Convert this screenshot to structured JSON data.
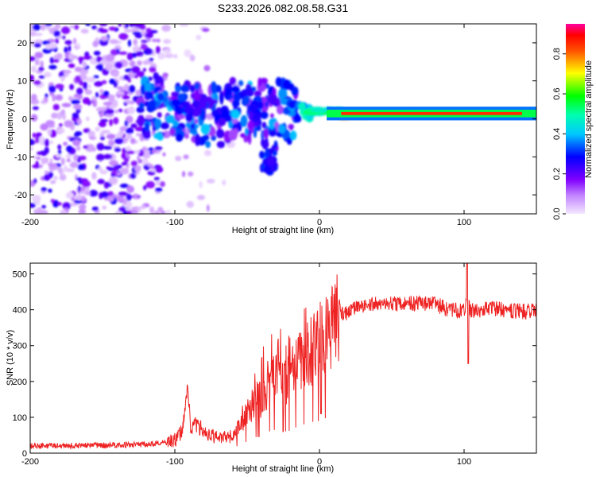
{
  "title": "S233.2026.082.08.58.G31",
  "chart_data": [
    {
      "type": "heatmap",
      "name": "spectrogram",
      "xlabel": "Height of straight line (km)",
      "ylabel": "Frequency (Hz)",
      "xlim": [
        -200,
        150
      ],
      "ylim": [
        -25,
        25
      ],
      "xticks": [
        -200,
        -100,
        0,
        100
      ],
      "xtick_labels": [
        "-200",
        "-100",
        "0",
        "100"
      ],
      "yticks": [
        -20,
        -10,
        0,
        10,
        20
      ],
      "ytick_labels": [
        "-20",
        "-10",
        "0",
        "10",
        "20"
      ],
      "colorbar": {
        "label": "Normalized spectral amplitude",
        "range": [
          0.0,
          0.95
        ],
        "ticks": [
          0.0,
          0.2,
          0.4,
          0.6,
          0.8
        ],
        "tick_labels": [
          "0.0",
          "0.2",
          "0.4",
          "0.6",
          "0.8"
        ]
      },
      "features": {
        "noise_region_x": [
          -200,
          -110
        ],
        "ridge": [
          {
            "x": -115,
            "f": 5,
            "amp": 0.4
          },
          {
            "x": -100,
            "f": 4,
            "amp": 0.35
          },
          {
            "x": -90,
            "f": 2,
            "amp": 0.3
          },
          {
            "x": -70,
            "f": 1,
            "amp": 0.3
          },
          {
            "x": -55,
            "f": 6,
            "amp": 0.35
          },
          {
            "x": -45,
            "f": 2,
            "amp": 0.3
          },
          {
            "x": -35,
            "f": -12,
            "amp": 0.3
          },
          {
            "x": -20,
            "f": 2,
            "amp": 0.4
          },
          {
            "x": -10,
            "f": 2,
            "amp": 0.5
          },
          {
            "x": 0,
            "f": 2,
            "amp": 0.6
          },
          {
            "x": 20,
            "f": 1,
            "amp": 0.85
          },
          {
            "x": 50,
            "f": 1.5,
            "amp": 0.9
          },
          {
            "x": 100,
            "f": 1.5,
            "amp": 0.9
          },
          {
            "x": 150,
            "f": 1.5,
            "amp": 0.85
          }
        ]
      }
    },
    {
      "type": "line",
      "name": "snr",
      "xlabel": "Height of straight line (km)",
      "ylabel": "SNR (10 * v/v)",
      "xlim": [
        -200,
        150
      ],
      "ylim": [
        0,
        530
      ],
      "xticks": [
        -200,
        -100,
        0,
        100
      ],
      "xtick_labels": [
        "-200",
        "-100",
        "0",
        "100"
      ],
      "yticks": [
        0,
        100,
        200,
        300,
        400,
        500
      ],
      "ytick_labels": [
        "0",
        "100",
        "200",
        "300",
        "400",
        "500"
      ],
      "color": "#ee2222",
      "series": [
        {
          "name": "SNR",
          "x": [
            -200,
            -180,
            -160,
            -140,
            -120,
            -110,
            -100,
            -95,
            -91,
            -89,
            -85,
            -80,
            -70,
            -60,
            -50,
            -45,
            -40,
            -35,
            -30,
            -25,
            -20,
            -15,
            -10,
            -5,
            0,
            5,
            10,
            15,
            20,
            30,
            40,
            50,
            60,
            70,
            80,
            90,
            100,
            102,
            104,
            110,
            120,
            130,
            140,
            150
          ],
          "y": [
            20,
            20,
            22,
            22,
            25,
            28,
            35,
            60,
            190,
            70,
            80,
            60,
            40,
            45,
            110,
            150,
            150,
            200,
            220,
            200,
            210,
            250,
            270,
            290,
            300,
            330,
            360,
            385,
            395,
            410,
            420,
            415,
            418,
            420,
            415,
            400,
            395,
            420,
            400,
            398,
            405,
            398,
            395,
            398
          ]
        }
      ]
    }
  ]
}
